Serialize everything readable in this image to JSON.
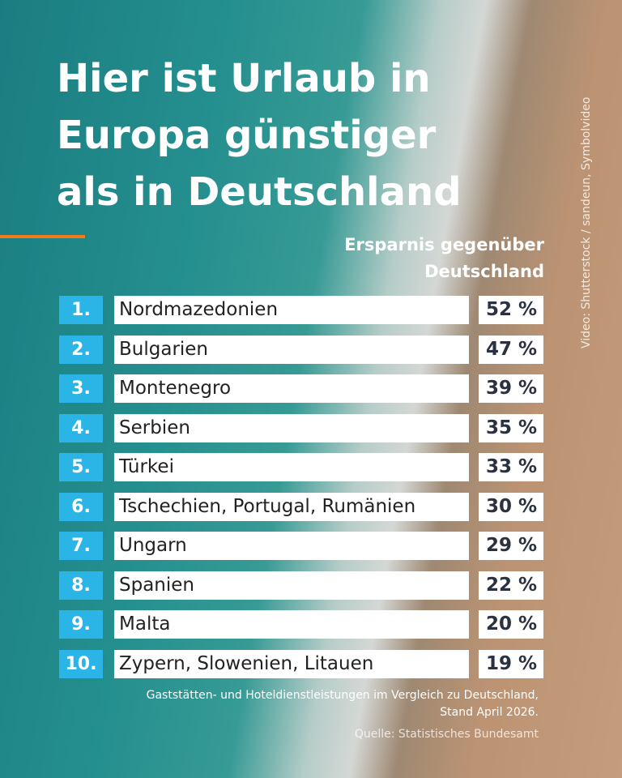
{
  "header": {
    "title": [
      "Hier ist Urlaub in",
      "Europa günstiger",
      "als in Deutschland"
    ],
    "subtitle": [
      "Ersparnis gegenüber",
      "Deutschland"
    ]
  },
  "table": {
    "rows": [
      [
        "1.",
        "Nordmazedonien",
        "52 %"
      ],
      [
        "2.",
        "Bulgarien",
        "47 %"
      ],
      [
        "3.",
        "Montenegro",
        "39 %"
      ],
      [
        "4.",
        "Serbien",
        "35 %"
      ],
      [
        "5.",
        "Türkei",
        "33 %"
      ],
      [
        "6.",
        "Tschechien, Portugal, Rumänien",
        "30 %"
      ],
      [
        "7.",
        "Ungarn",
        "29 %"
      ],
      [
        "8.",
        "Spanien",
        "22 %"
      ],
      [
        "9.",
        "Malta",
        "20 %"
      ],
      [
        "10.",
        "Zypern, Slowenien, Litauen",
        "19 %"
      ]
    ]
  },
  "footer": {
    "note": [
      "Gaststätten- und Hoteldienstleistungen im Vergleich zu Deutschland,",
      "Stand April 2026."
    ],
    "source": "Quelle: Statistisches Bundesamt"
  },
  "credit": "Video: Shutterstock / sandeun, Symbolvideo"
}
